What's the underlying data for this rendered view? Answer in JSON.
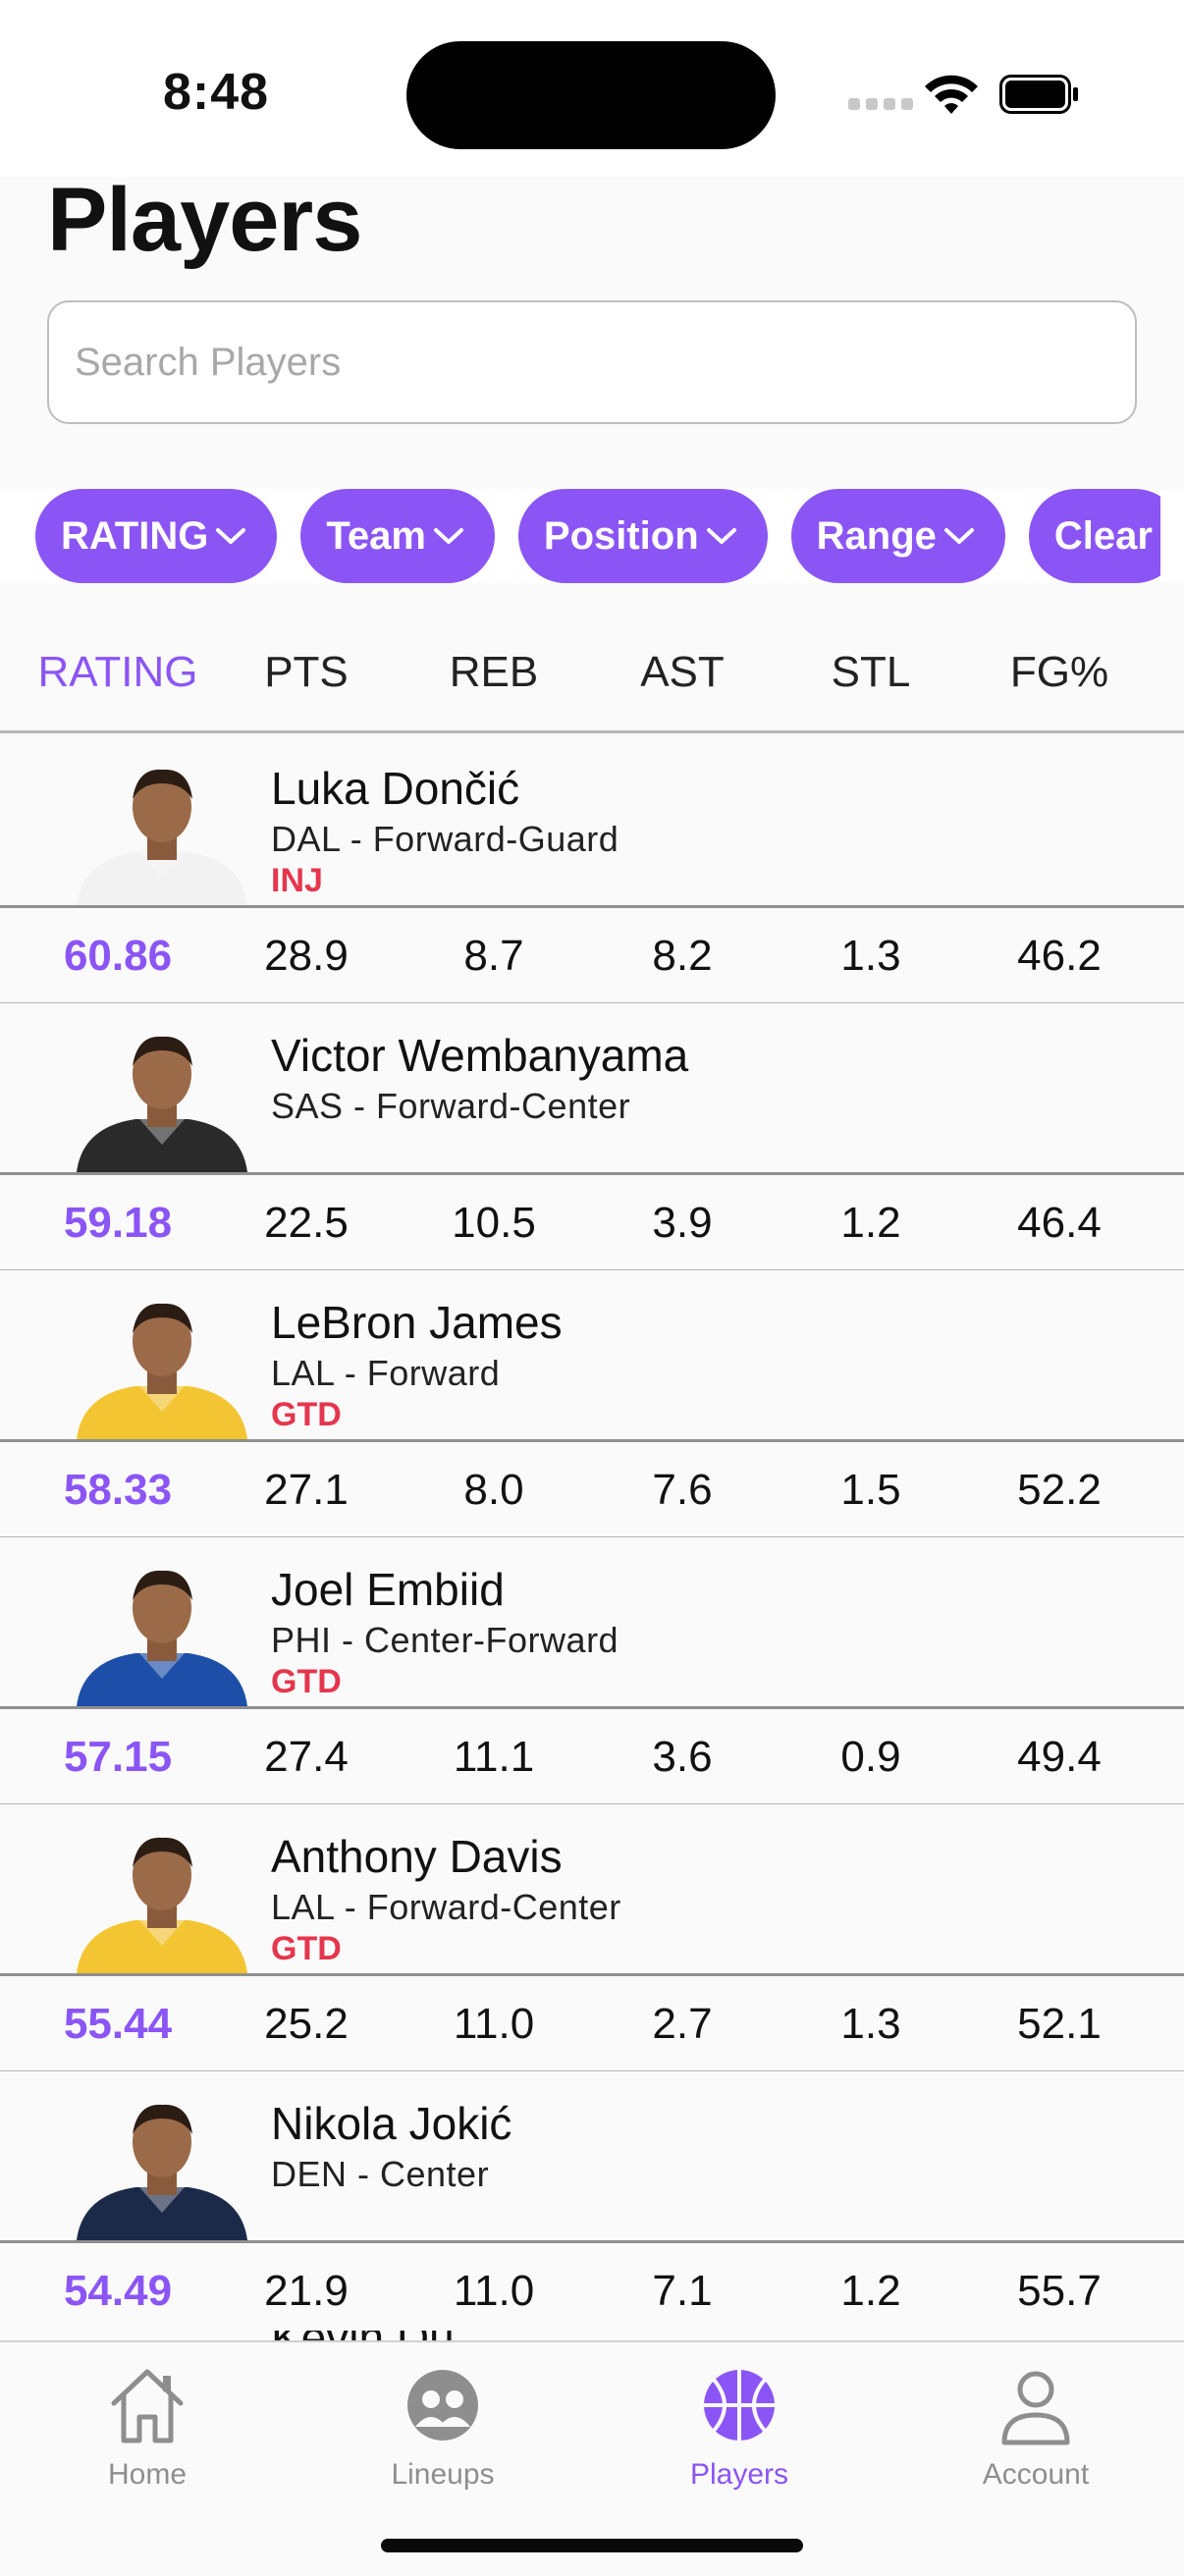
{
  "status_bar": {
    "time": "8:48"
  },
  "page_title": "Players",
  "search": {
    "placeholder": "Search Players",
    "value": ""
  },
  "filters": [
    "RATING",
    "Team",
    "Position",
    "Range",
    "Clear"
  ],
  "columns": [
    "RATING",
    "PTS",
    "REB",
    "AST",
    "STL",
    "FG%"
  ],
  "accent_color": "#8b55f5",
  "status_color": "#e5364d",
  "players": [
    {
      "name": "Luka Dončić",
      "meta": "DAL - Forward-Guard",
      "status": "INJ",
      "jersey": "#f2f2f2",
      "stats": [
        "60.86",
        "28.9",
        "8.7",
        "8.2",
        "1.3",
        "46.2"
      ]
    },
    {
      "name": "Victor Wembanyama",
      "meta": "SAS - Forward-Center",
      "status": "",
      "jersey": "#2a2a2a",
      "stats": [
        "59.18",
        "22.5",
        "10.5",
        "3.9",
        "1.2",
        "46.4"
      ]
    },
    {
      "name": "LeBron James",
      "meta": "LAL - Forward",
      "status": "GTD",
      "jersey": "#f3c533",
      "stats": [
        "58.33",
        "27.1",
        "8.0",
        "7.6",
        "1.5",
        "52.2"
      ]
    },
    {
      "name": "Joel Embiid",
      "meta": "PHI - Center-Forward",
      "status": "GTD",
      "jersey": "#1d4fa8",
      "stats": [
        "57.15",
        "27.4",
        "11.1",
        "3.6",
        "0.9",
        "49.4"
      ]
    },
    {
      "name": "Anthony Davis",
      "meta": "LAL - Forward-Center",
      "status": "GTD",
      "jersey": "#f3c533",
      "stats": [
        "55.44",
        "25.2",
        "11.0",
        "2.7",
        "1.3",
        "52.1"
      ]
    },
    {
      "name": "Nikola Jokić",
      "meta": "DEN - Center",
      "status": "",
      "jersey": "#1c2a4a",
      "stats": [
        "54.49",
        "21.9",
        "11.0",
        "7.1",
        "1.2",
        "55.7"
      ]
    }
  ],
  "partial_player": {
    "name": "Kevin Du..."
  },
  "tabs": [
    {
      "label": "Home",
      "icon": "home-icon",
      "active": false
    },
    {
      "label": "Lineups",
      "icon": "lineups-icon",
      "active": false
    },
    {
      "label": "Players",
      "icon": "basketball-icon",
      "active": true
    },
    {
      "label": "Account",
      "icon": "account-icon",
      "active": false
    }
  ]
}
